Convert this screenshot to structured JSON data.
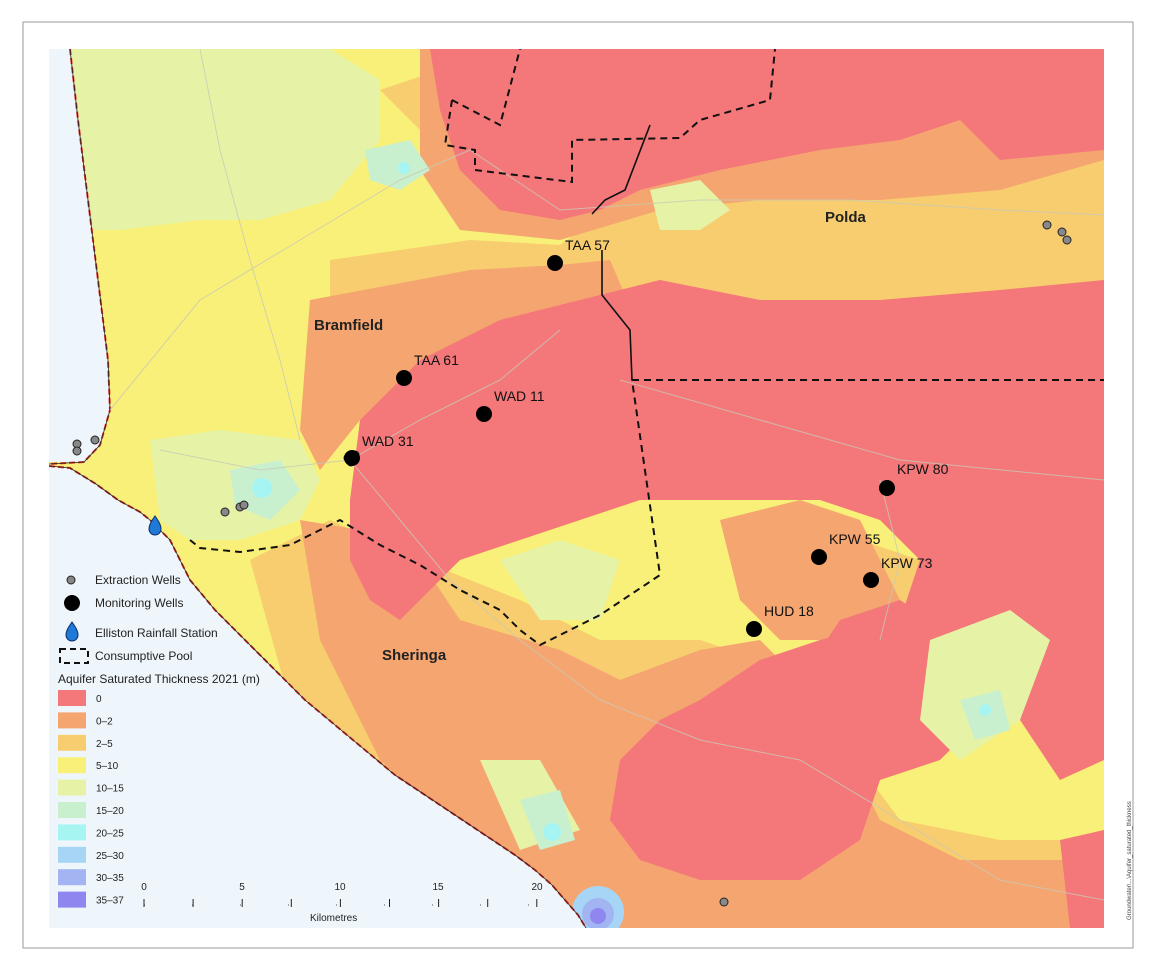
{
  "towns": [
    "Polda",
    "Bramfield",
    "Sheringa"
  ],
  "monitoring_wells": [
    "TAA 57",
    "TAA 61",
    "WAD 11",
    "WAD 31",
    "KPW 80",
    "KPW 55",
    "KPW 73",
    "HUD 18"
  ],
  "legend": {
    "extraction_wells": "Extraction Wells",
    "monitoring_wells": "Monitoring Wells",
    "rainfall_station": "Elliston Rainfall Station",
    "consumptive_pool": "Consumptive Pool",
    "thickness_title": "Aquifer Saturated Thickness 2021 (m)",
    "classes": [
      {
        "label": "0",
        "color": "#f4777a"
      },
      {
        "label": "0–2",
        "color": "#f5a56f"
      },
      {
        "label": "2–5",
        "color": "#f7cd6f"
      },
      {
        "label": "5–10",
        "color": "#f8f078"
      },
      {
        "label": "10–15",
        "color": "#e6f3a6"
      },
      {
        "label": "15–20",
        "color": "#c8f0cf"
      },
      {
        "label": "20–25",
        "color": "#a6f5f3"
      },
      {
        "label": "25–30",
        "color": "#a7d5f6"
      },
      {
        "label": "30–35",
        "color": "#a3b4f2"
      },
      {
        "label": "35–37",
        "color": "#8f86f0"
      }
    ]
  },
  "scale": {
    "ticks": [
      "0",
      "5",
      "10",
      "15",
      "20"
    ],
    "unit": "Kilometres"
  },
  "side_text": "Groundwater\\...\\Aquifer_saturated_thickness",
  "colors": {
    "sea": "#eef6fb",
    "coast": "#d9302c"
  }
}
